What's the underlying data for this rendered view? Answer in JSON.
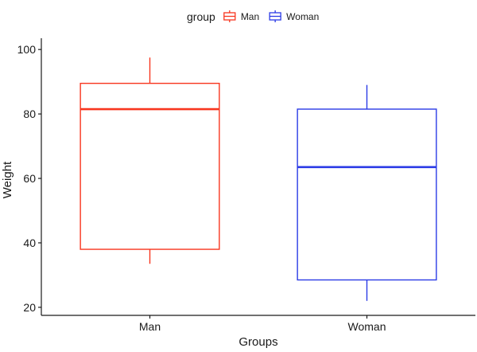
{
  "chart_data": {
    "type": "boxplot",
    "xlabel": "Groups",
    "ylabel": "Weight",
    "categories": [
      "Man",
      "Woman"
    ],
    "ylim": [
      17.5,
      103.5
    ],
    "yticks": [
      20,
      40,
      60,
      80,
      100
    ],
    "grid": false,
    "legend": {
      "title": "group",
      "position": "top",
      "entries": [
        {
          "label": "Man",
          "color": "#F8361F"
        },
        {
          "label": "Woman",
          "color": "#2B3BE6"
        }
      ]
    },
    "series": [
      {
        "name": "Man",
        "color": "#F8361F",
        "min": 33.5,
        "q1": 38,
        "median": 81.5,
        "q3": 89.5,
        "max": 97.5
      },
      {
        "name": "Woman",
        "color": "#2B3BE6",
        "min": 22,
        "q1": 28.5,
        "median": 63.5,
        "q3": 81.5,
        "max": 89
      }
    ]
  }
}
